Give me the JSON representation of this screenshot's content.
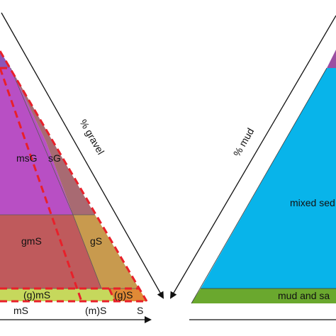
{
  "colors": {
    "msG": "#b84fc4",
    "sG": "#a86a72",
    "gmS": "#bf5a5c",
    "gS": "#c89a4e",
    "g_mS": "#c6d85c",
    "g_S": "#e08a36",
    "apex_left": "#8c55b8",
    "mixed": "#08b4ea",
    "mud_and_sand": "#6aa82e",
    "apex_right": "#9b4fa2",
    "dash": "#e8202a"
  },
  "left_triangle": {
    "classes": {
      "msG": "msG",
      "sG": "sG",
      "gmS": "gmS",
      "gS": "gS",
      "g_mS": "(g)mS",
      "g_S": "(g)S"
    },
    "axis_labels": {
      "gravel": "% gravel",
      "mS": "mS",
      "m_S": "(m)S",
      "S": "S"
    }
  },
  "right_triangle": {
    "classes": {
      "mixed": "mixed sed",
      "mud_and_sand": "mud and sa"
    },
    "axis_labels": {
      "mud": "% mud"
    }
  },
  "icons": {
    "arrows": [
      "arrow-gravel-icon",
      "arrow-mud-icon",
      "arrow-bottom-left-icon"
    ]
  }
}
